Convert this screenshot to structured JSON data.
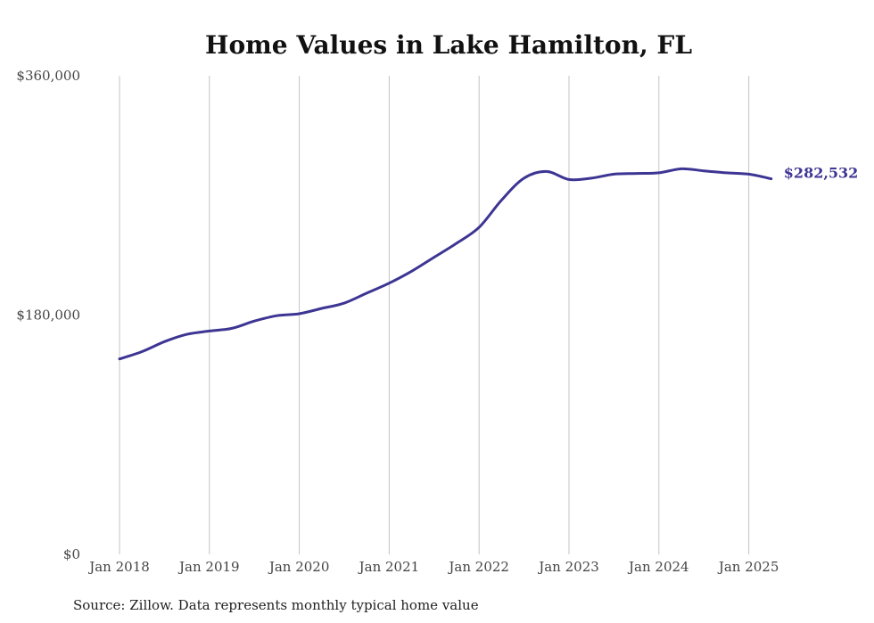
{
  "chart_data": {
    "type": "line",
    "title": "Home Values in Lake Hamilton, FL",
    "xlabel": "",
    "ylabel": "",
    "ylim": [
      0,
      360000
    ],
    "yticks": [
      {
        "value": 0,
        "label": "$0"
      },
      {
        "value": 180000,
        "label": "$180,000"
      },
      {
        "value": 360000,
        "label": "$360,000"
      }
    ],
    "xticks": [
      "Jan 2018",
      "Jan 2019",
      "Jan 2020",
      "Jan 2021",
      "Jan 2022",
      "Jan 2023",
      "Jan 2024",
      "Jan 2025"
    ],
    "grid": "vertical",
    "series": [
      {
        "color": "#3d3593",
        "end_label": "$282,532",
        "points": [
          {
            "x": "2018-01",
            "y": 147000
          },
          {
            "x": "2018-04",
            "y": 152500
          },
          {
            "x": "2018-07",
            "y": 160000
          },
          {
            "x": "2018-10",
            "y": 165500
          },
          {
            "x": "2019-01",
            "y": 168000
          },
          {
            "x": "2019-04",
            "y": 170000
          },
          {
            "x": "2019-07",
            "y": 175500
          },
          {
            "x": "2019-10",
            "y": 179500
          },
          {
            "x": "2020-01",
            "y": 181000
          },
          {
            "x": "2020-04",
            "y": 185000
          },
          {
            "x": "2020-07",
            "y": 189000
          },
          {
            "x": "2020-10",
            "y": 196500
          },
          {
            "x": "2021-01",
            "y": 204000
          },
          {
            "x": "2021-04",
            "y": 213000
          },
          {
            "x": "2021-07",
            "y": 223500
          },
          {
            "x": "2021-10",
            "y": 234000
          },
          {
            "x": "2022-01",
            "y": 246000
          },
          {
            "x": "2022-04",
            "y": 266500
          },
          {
            "x": "2022-07",
            "y": 283000
          },
          {
            "x": "2022-10",
            "y": 288000
          },
          {
            "x": "2023-01",
            "y": 282000
          },
          {
            "x": "2023-04",
            "y": 283000
          },
          {
            "x": "2023-07",
            "y": 286000
          },
          {
            "x": "2023-10",
            "y": 286500
          },
          {
            "x": "2024-01",
            "y": 287000
          },
          {
            "x": "2024-04",
            "y": 290000
          },
          {
            "x": "2024-07",
            "y": 288500
          },
          {
            "x": "2024-10",
            "y": 287000
          },
          {
            "x": "2025-01",
            "y": 286000
          },
          {
            "x": "2025-04",
            "y": 282532
          }
        ]
      }
    ]
  },
  "footer": {
    "source": "Source: Zillow. Data represents monthly typical home value"
  }
}
